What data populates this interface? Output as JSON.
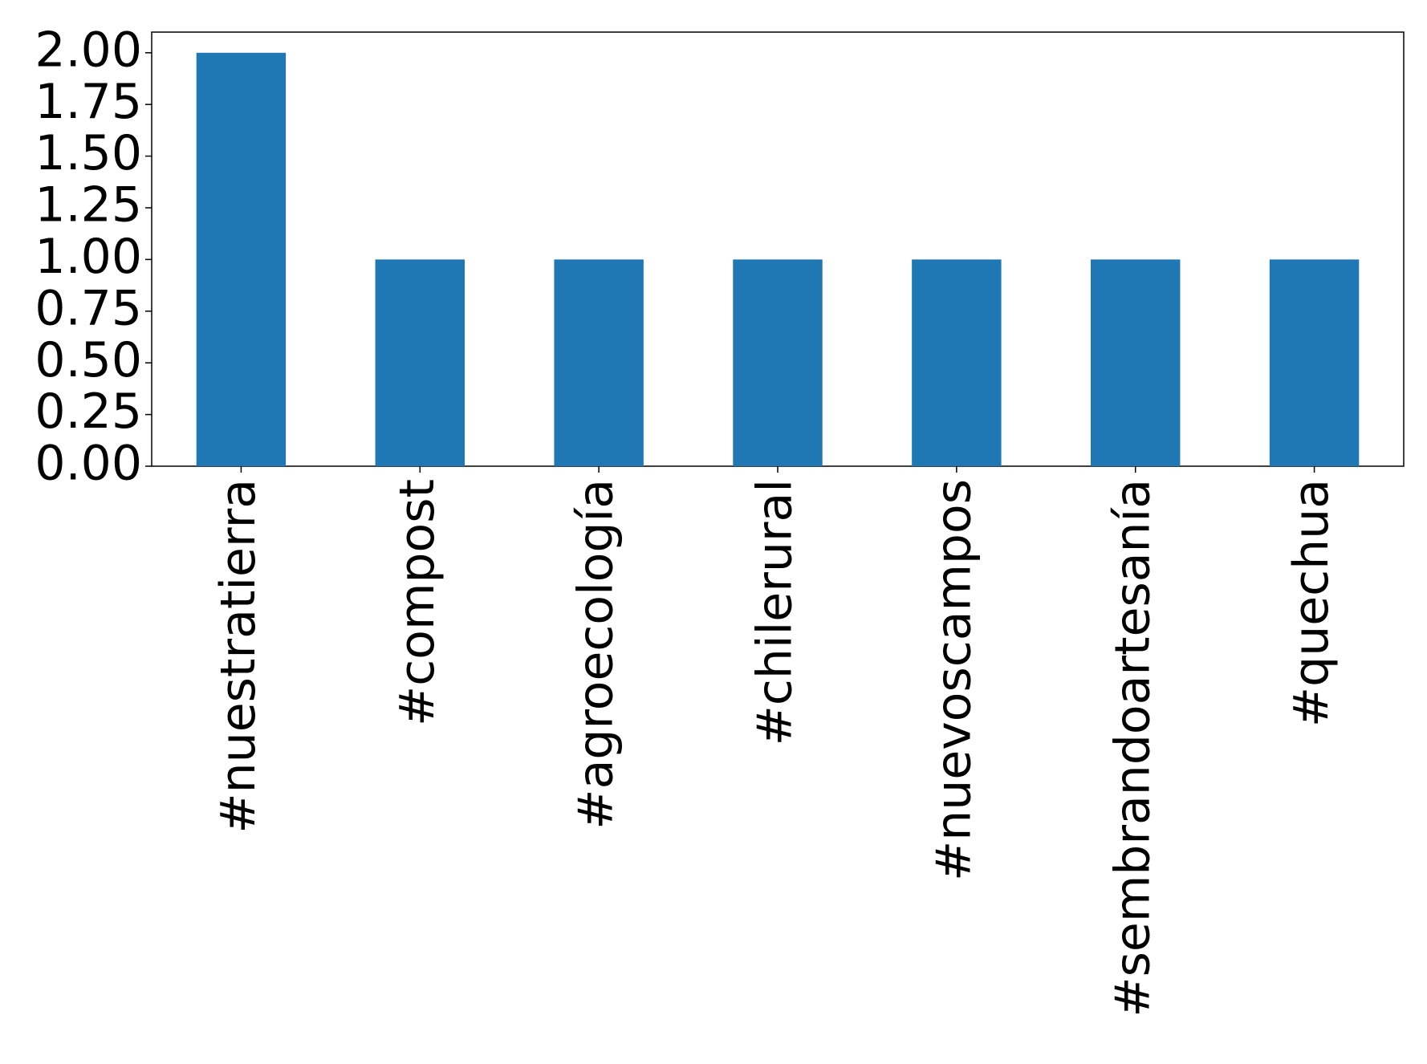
{
  "chart_data": {
    "type": "bar",
    "categories": [
      "#nuestratierra",
      "#compost",
      "#agroecología",
      "#chilerural",
      "#nuevoscampos",
      "#sembrandoartesanía",
      "#quechua"
    ],
    "values": [
      2,
      1,
      1,
      1,
      1,
      1,
      1
    ],
    "color": "#1f77b4",
    "ylim": [
      0,
      2.1
    ],
    "yticks": [
      {
        "value": 0,
        "label": "0.00"
      },
      {
        "value": 0.25,
        "label": "0.25"
      },
      {
        "value": 0.5,
        "label": "0.50"
      },
      {
        "value": 0.75,
        "label": "0.75"
      },
      {
        "value": 1,
        "label": "1.00"
      },
      {
        "value": 1.25,
        "label": "1.25"
      },
      {
        "value": 1.5,
        "label": "1.50"
      },
      {
        "value": 1.75,
        "label": "1.75"
      },
      {
        "value": 2,
        "label": "2.00"
      }
    ],
    "grid": false
  }
}
